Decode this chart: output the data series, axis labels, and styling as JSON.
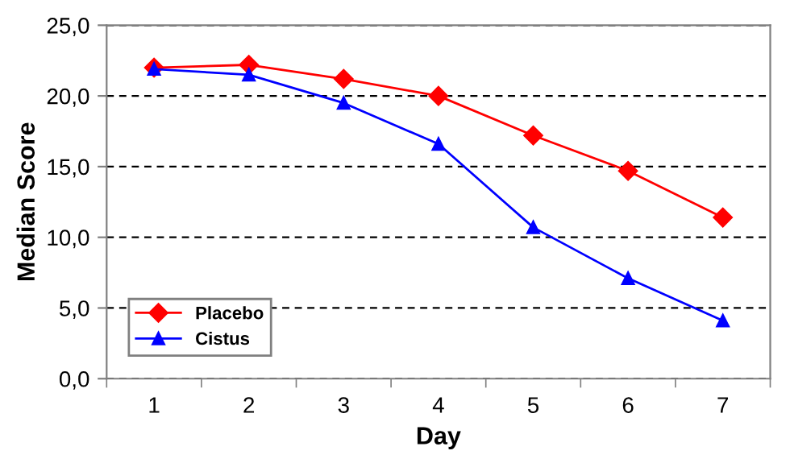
{
  "chart_data": {
    "type": "line",
    "xlabel": "Day",
    "ylabel": "Median Score",
    "categories": [
      "1",
      "2",
      "3",
      "4",
      "5",
      "6",
      "7"
    ],
    "series": [
      {
        "name": "Placebo",
        "color": "#ff0000",
        "marker": "diamond",
        "values": [
          22.0,
          22.2,
          21.2,
          20.0,
          17.2,
          14.7,
          11.4
        ]
      },
      {
        "name": "Cistus",
        "color": "#0000ff",
        "marker": "triangle",
        "values": [
          21.9,
          21.5,
          19.5,
          16.6,
          10.7,
          7.1,
          4.1
        ]
      }
    ],
    "ylim": [
      0,
      25
    ],
    "yticks": [
      {
        "value": 0,
        "label": "0,0"
      },
      {
        "value": 5,
        "label": "5,0"
      },
      {
        "value": 10,
        "label": "10,0"
      },
      {
        "value": 15,
        "label": "15,0"
      },
      {
        "value": 20,
        "label": "20,0"
      },
      {
        "value": 25,
        "label": "25,0"
      }
    ],
    "grid": "y",
    "legend": "bottom left",
    "line_style": "solid"
  }
}
